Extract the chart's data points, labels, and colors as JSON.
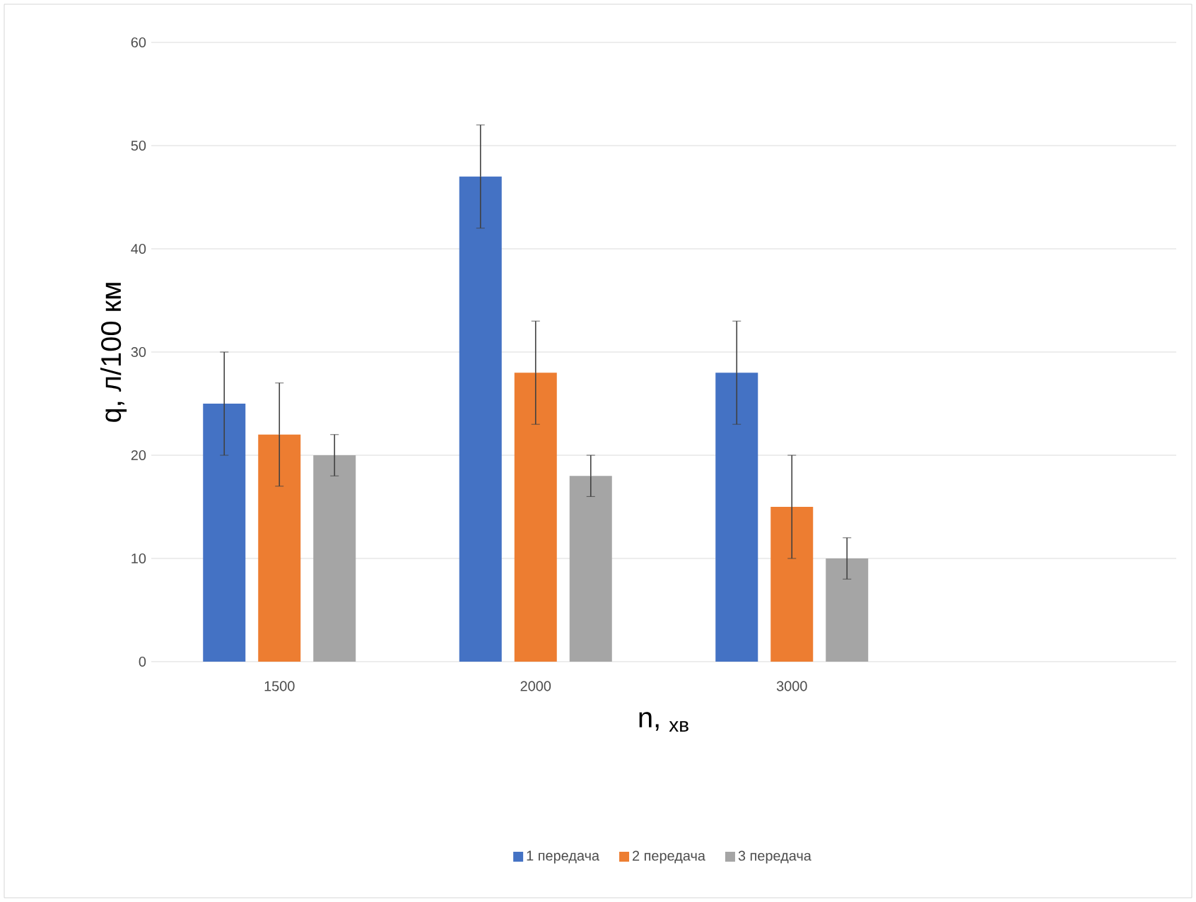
{
  "chart_data": {
    "type": "bar",
    "categories": [
      "1500",
      "2000",
      "3000",
      null
    ],
    "xlabel": "n, $_{хв}$",
    "ylabel": "q, л/100 км",
    "series": [
      {
        "name": "1 передача",
        "color": "#4472c4",
        "values": [
          25,
          47,
          28,
          null
        ],
        "errors": [
          5,
          5,
          5,
          null
        ]
      },
      {
        "name": "2 передача",
        "color": "#ed7d31",
        "values": [
          22,
          28,
          15,
          null
        ],
        "errors": [
          5,
          5,
          5,
          null
        ]
      },
      {
        "name": "3 передача",
        "color": "#a5a5a5",
        "values": [
          20,
          18,
          10,
          null
        ],
        "errors": [
          2,
          2,
          2,
          null
        ]
      }
    ],
    "ylim": [
      0,
      60
    ],
    "yticks": [
      0,
      10,
      20,
      30,
      40,
      50,
      60
    ],
    "grid": "y",
    "legend": "bottom"
  }
}
